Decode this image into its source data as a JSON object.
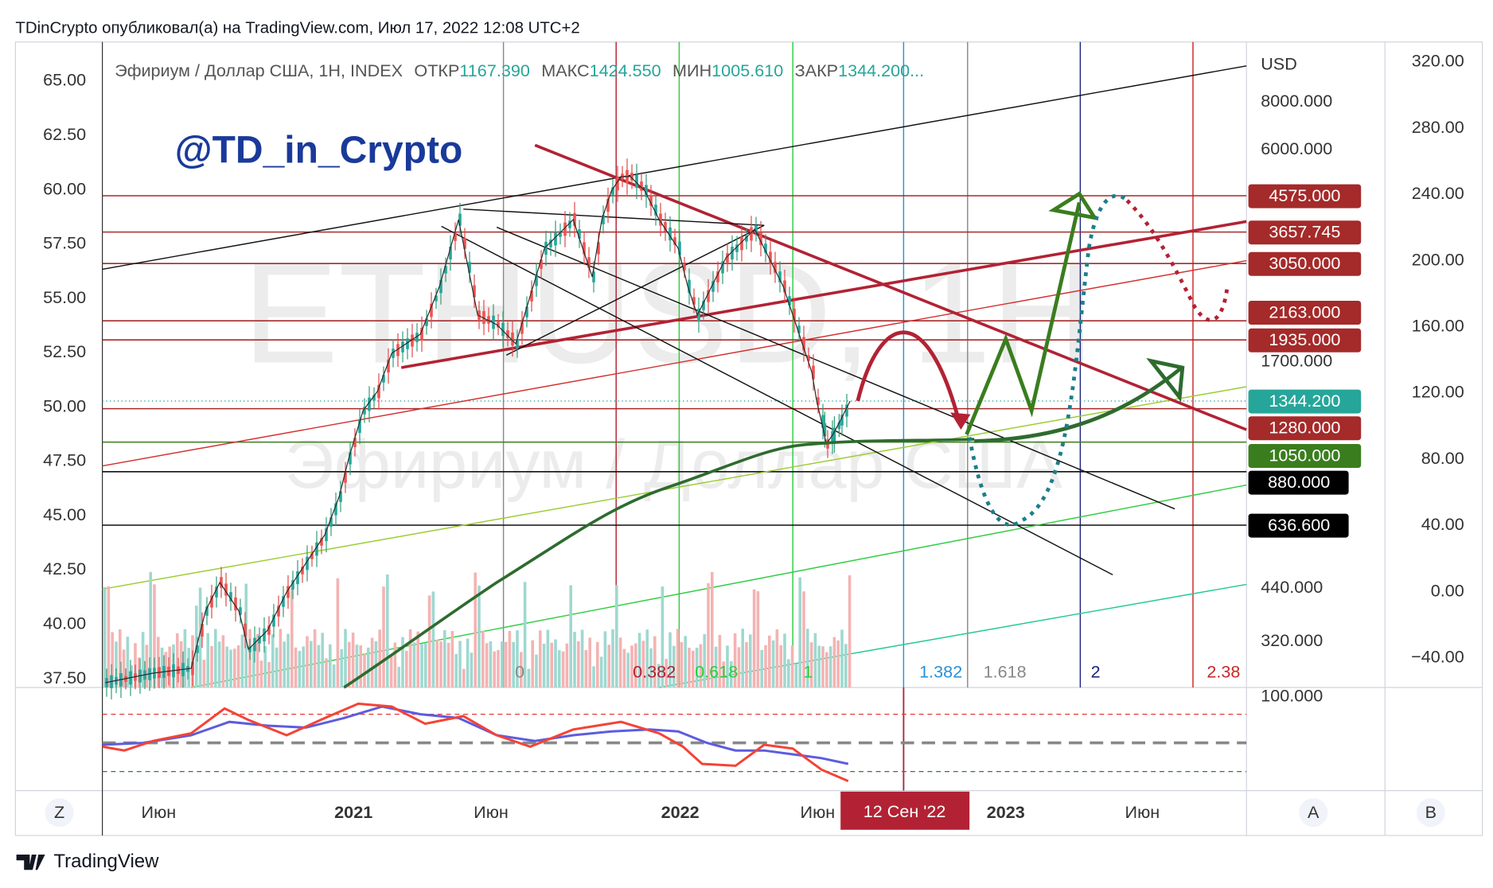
{
  "header": {
    "text": "TDinCrypto опубликовал(а) на TradingView.com, Июл 17, 2022 12:08 UTC+2"
  },
  "symbol_info": {
    "name": "Эфириум / Доллар США, 1Н, INDEX",
    "open_label": "ОТКР",
    "open": "1167.390",
    "high_label": "МАКС",
    "high": "1424.550",
    "low_label": "МИН",
    "low": "1005.610",
    "close_label": "ЗАКР",
    "close": "1344.200..."
  },
  "watermark": {
    "symbol": "ETHUSD, 1H",
    "description": "Эфириум / Доллар США"
  },
  "annotation": "@TD_in_Crypto",
  "left_axis": [
    "65.00",
    "62.50",
    "60.00",
    "57.50",
    "55.00",
    "52.50",
    "50.00",
    "47.50",
    "45.00",
    "42.50",
    "40.00",
    "37.50"
  ],
  "right_axis": [
    "320.00",
    "280.00",
    "240.00",
    "200.00",
    "160.00",
    "120.00",
    "80.00",
    "40.00",
    "0.00",
    "−40.00"
  ],
  "usd_axis": {
    "title": "USD",
    "labels": [
      "8000.000",
      "6000.000",
      "1700.000",
      "440.000",
      "320.000",
      "100.000"
    ]
  },
  "price_tags": [
    "4575.000",
    "3657.745",
    "3050.000",
    "2163.000",
    "1935.000",
    "1344.200",
    "1280.000",
    "1050.000",
    "880.000",
    "636.600"
  ],
  "fib_labels": [
    "0",
    "0.382",
    "0.618",
    "1",
    "1.382",
    "1.618",
    "2",
    "2.38"
  ],
  "time_axis": [
    "Июн",
    "2021",
    "Июн",
    "2022",
    "Июн",
    "2023",
    "Июн"
  ],
  "crosshair_date": "12 Сен '22",
  "toolbar": [
    "Z",
    "A",
    "B"
  ],
  "footer": "TradingView"
}
